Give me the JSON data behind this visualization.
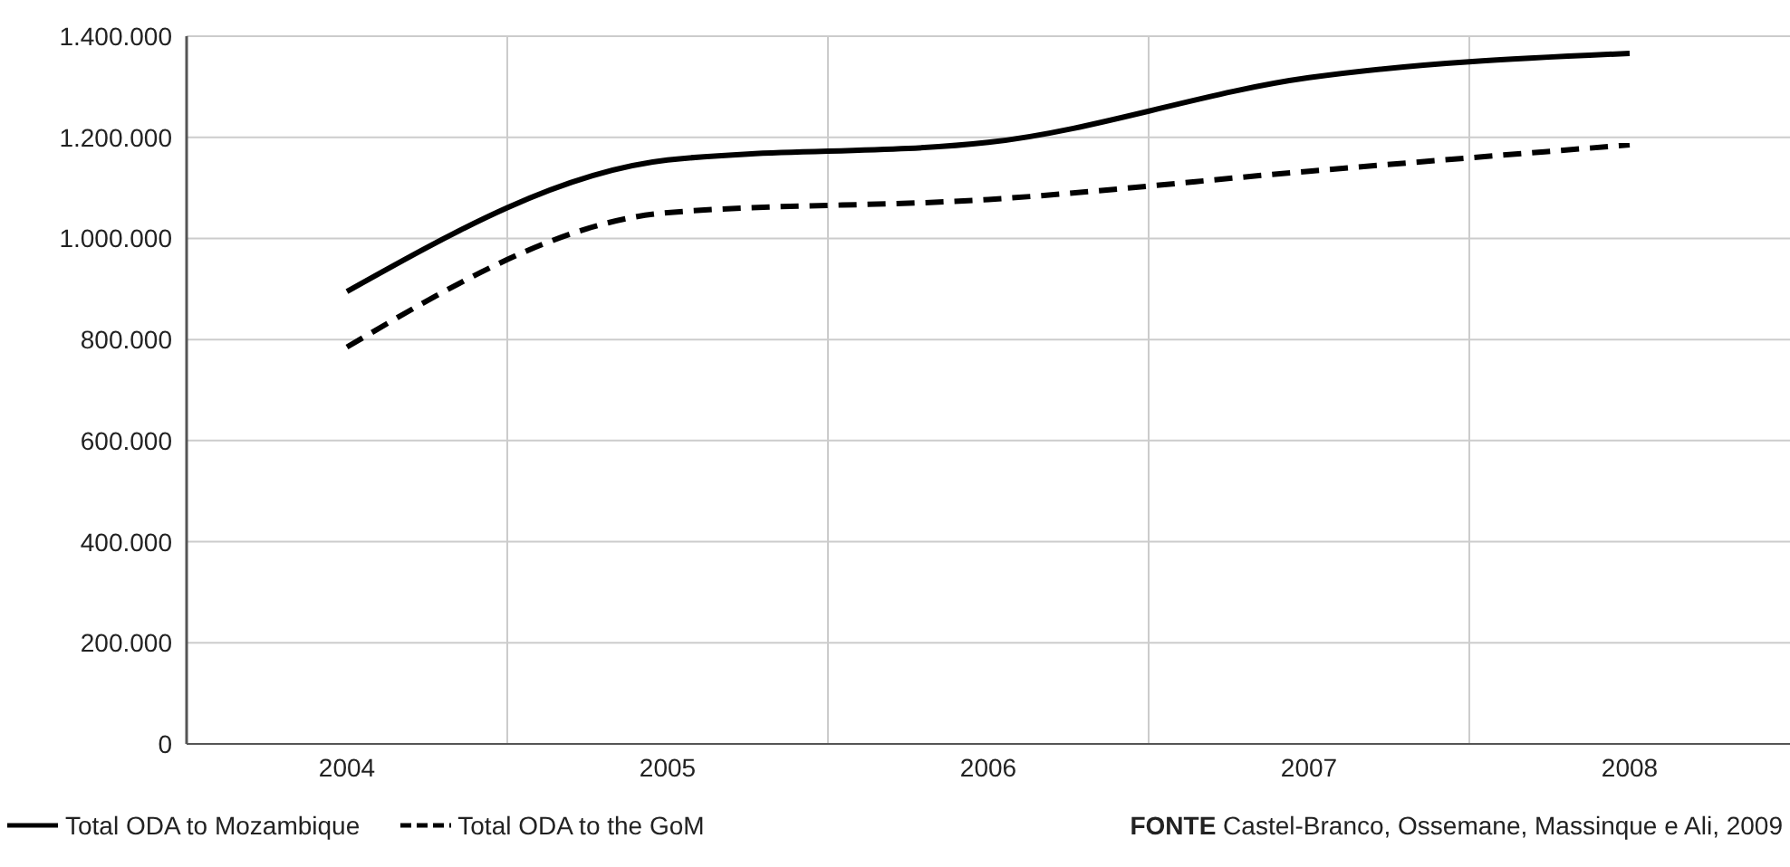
{
  "chart_data": {
    "type": "line",
    "categories": [
      "2004",
      "2005",
      "2006",
      "2007",
      "2008"
    ],
    "series": [
      {
        "name": "Total ODA to Mozambique",
        "color": "#000000",
        "line_style": "solid",
        "values": [
          895000,
          1155000,
          1190000,
          1318000,
          1366000
        ]
      },
      {
        "name": "Total ODA to the GoM",
        "color": "#000000",
        "line_style": "dashed",
        "values": [
          785000,
          1051000,
          1077000,
          1133000,
          1185000
        ]
      }
    ],
    "ylim": [
      0,
      1400000
    ],
    "yticks": [
      0,
      {
        "value": 200000,
        "label": "200.000"
      },
      {
        "value": 400000,
        "label": "400.000"
      },
      {
        "value": 600000,
        "label": "600.000"
      },
      {
        "value": 800000,
        "label": "800.000"
      },
      {
        "value": 1000000,
        "label": "1.000.000"
      },
      {
        "value": 1200000,
        "label": "1.200.000"
      },
      {
        "value": 1400000,
        "label": "1.400.000"
      }
    ],
    "grid": true,
    "legend": "bottom left",
    "marker": "none",
    "annotations": [
      "FONTE Castel-Branco, Ossemane, Massinque e Ali, 2009"
    ]
  }
}
